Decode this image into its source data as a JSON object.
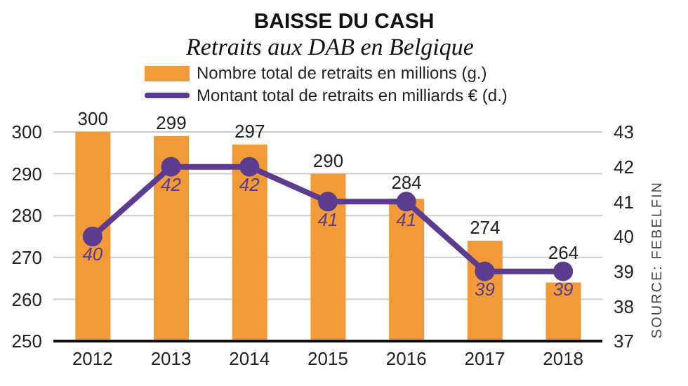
{
  "chart_data": {
    "type": "bar",
    "title": "BAISSE DU CASH",
    "subtitle": "Retraits aux DAB en Belgique",
    "categories": [
      "2012",
      "2013",
      "2014",
      "2015",
      "2016",
      "2017",
      "2018"
    ],
    "series": [
      {
        "name": "Nombre total de retraits en millions (g.)",
        "color": "#f39a38",
        "values": [
          300,
          299,
          297,
          290,
          284,
          274,
          264
        ]
      },
      {
        "name": "Montant total de retraits en milliards € (d.)",
        "type": "line",
        "axis": "y2",
        "color": "#5b3c8f",
        "values": [
          40,
          42,
          42,
          41,
          41,
          39,
          39
        ]
      }
    ],
    "ylim": [
      250,
      300
    ],
    "yticks": [
      250,
      260,
      270,
      280,
      290,
      300
    ],
    "y2lim": [
      37,
      43
    ],
    "y2ticks": [
      37,
      38,
      39,
      40,
      41,
      42,
      43
    ],
    "grid": "y",
    "legend": "top",
    "marker": "circle",
    "line_style": "solid",
    "data_labels": true,
    "annotations": [
      "SOURCE: FEBELFIN"
    ]
  }
}
